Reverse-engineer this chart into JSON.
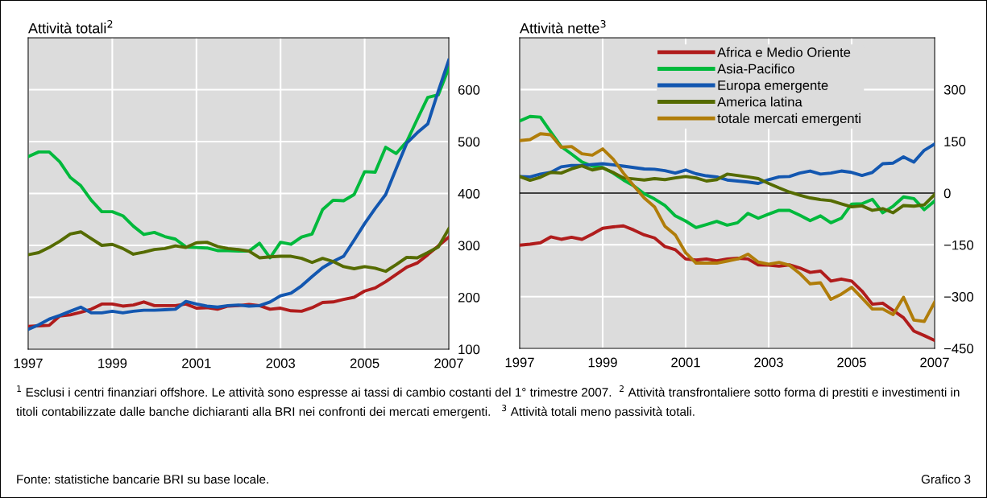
{
  "chart_data": [
    {
      "type": "line",
      "title": "Attività totali$^{2}$",
      "x": [
        1997,
        1997.25,
        1997.5,
        1997.75,
        1998,
        1998.25,
        1998.5,
        1998.75,
        1999,
        1999.25,
        1999.5,
        1999.75,
        2000,
        2000.25,
        2000.5,
        2000.75,
        2001,
        2001.25,
        2001.5,
        2001.75,
        2002,
        2002.25,
        2002.5,
        2002.75,
        2003,
        2003.25,
        2003.5,
        2003.75,
        2004,
        2004.25,
        2004.5,
        2004.75,
        2005,
        2005.25,
        2005.5,
        2005.75,
        2006,
        2006.25,
        2006.5,
        2006.75,
        2007
      ],
      "xlim": [
        1997,
        2007
      ],
      "xticks": [
        1997,
        1999,
        2001,
        2003,
        2005,
        2007
      ],
      "ylim": [
        100,
        700
      ],
      "yticks": [
        100,
        200,
        300,
        400,
        500,
        600
      ],
      "grid": true,
      "line_style": "solid",
      "marker": "none",
      "series": [
        {
          "color": "#b01c1c",
          "values": [
            144,
            145,
            146,
            164,
            166,
            171,
            177,
            187,
            187,
            183,
            185,
            191,
            184,
            184,
            184,
            187,
            179,
            180,
            177,
            183,
            184,
            186,
            184,
            177,
            179,
            174,
            173,
            180,
            190,
            191,
            196,
            200,
            212,
            218,
            230,
            244,
            258,
            266,
            282,
            299,
            316
          ]
        },
        {
          "color": "#00b93c",
          "values": [
            471,
            480,
            480,
            461,
            431,
            415,
            387,
            365,
            365,
            357,
            337,
            321,
            325,
            317,
            312,
            297,
            296,
            295,
            290,
            290,
            289,
            289,
            304,
            276,
            306,
            302,
            316,
            322,
            369,
            387,
            386,
            398,
            442,
            441,
            489,
            477,
            500,
            543,
            585,
            590,
            642
          ]
        },
        {
          "color": "#1357b0",
          "values": [
            138,
            147,
            158,
            165,
            173,
            181,
            170,
            170,
            173,
            170,
            173,
            175,
            175,
            176,
            177,
            192,
            187,
            183,
            181,
            184,
            185,
            183,
            184,
            191,
            203,
            208,
            222,
            240,
            257,
            269,
            279,
            310,
            342,
            371,
            398,
            448,
            497,
            517,
            534,
            597,
            657
          ]
        },
        {
          "color": "#556b00",
          "values": [
            282,
            286,
            296,
            308,
            322,
            326,
            313,
            300,
            302,
            294,
            283,
            287,
            292,
            294,
            299,
            296,
            305,
            306,
            298,
            294,
            292,
            289,
            276,
            278,
            279,
            279,
            275,
            267,
            275,
            269,
            259,
            255,
            259,
            256,
            250,
            263,
            277,
            276,
            286,
            297,
            332
          ]
        }
      ],
      "annotations": [
        "$^{1}$ Esclusi i centri finanziari offshore. Le attività sono espresse ai tassi di cambio costanti del 1° trimestre 2007.  $^{2}$ Attività transfrontaliere sotto forma di prestiti e investimenti in titoli contabilizzate dalle banche dichiaranti alla BRI nei confronti dei mercati emergenti.   $^{3}$ Attività totali meno passività totali.",
        "Fonte: statistiche bancarie BRI su base locale.",
        "Grafico 3"
      ]
    },
    {
      "type": "line",
      "title": "Attività nette$^{3}$",
      "x": [
        1997,
        1997.25,
        1997.5,
        1997.75,
        1998,
        1998.25,
        1998.5,
        1998.75,
        1999,
        1999.25,
        1999.5,
        1999.75,
        2000,
        2000.25,
        2000.5,
        2000.75,
        2001,
        2001.25,
        2001.5,
        2001.75,
        2002,
        2002.25,
        2002.5,
        2002.75,
        2003,
        2003.25,
        2003.5,
        2003.75,
        2004,
        2004.25,
        2004.5,
        2004.75,
        2005,
        2005.25,
        2005.5,
        2005.75,
        2006,
        2006.25,
        2006.5,
        2006.75,
        2007
      ],
      "xlim": [
        1997,
        2007
      ],
      "xticks": [
        1997,
        1999,
        2001,
        2003,
        2005,
        2007
      ],
      "ylim": [
        -450,
        450
      ],
      "yticks": [
        {
          "value": -450,
          "label": "−450"
        },
        {
          "value": -300,
          "label": "−300"
        },
        {
          "value": -150,
          "label": "−150"
        },
        0,
        150,
        300
      ],
      "grid": true,
      "legend": "top",
      "line_style": "solid",
      "marker": "none",
      "ref_lines": [
        {
          "axis": "y",
          "value": 0,
          "color": "#000000"
        }
      ],
      "series": [
        {
          "name": "Africa e Medio Oriente",
          "color": "#b01c1c",
          "values": [
            -151,
            -148,
            -144,
            -127,
            -134,
            -128,
            -134,
            -119,
            -102,
            -98,
            -95,
            -107,
            -121,
            -130,
            -155,
            -164,
            -191,
            -194,
            -191,
            -196,
            -191,
            -189,
            -191,
            -208,
            -209,
            -212,
            -208,
            -217,
            -230,
            -226,
            -255,
            -249,
            -255,
            -284,
            -322,
            -319,
            -340,
            -361,
            -400,
            -413,
            -427
          ]
        },
        {
          "name": "Asia-Pacifico",
          "color": "#00b93c",
          "values": [
            209,
            222,
            220,
            177,
            135,
            113,
            90,
            78,
            74,
            58,
            38,
            21,
            -2,
            -17,
            -36,
            -66,
            -81,
            -100,
            -91,
            -82,
            -93,
            -86,
            -59,
            -73,
            -61,
            -50,
            -50,
            -64,
            -80,
            -66,
            -86,
            -73,
            -32,
            -31,
            -18,
            -57,
            -38,
            -11,
            -16,
            -48,
            -23
          ]
        },
        {
          "name": "Europa emergente",
          "color": "#1357b0",
          "values": [
            48,
            47,
            55,
            60,
            76,
            80,
            80,
            83,
            85,
            82,
            78,
            74,
            70,
            69,
            65,
            58,
            67,
            56,
            50,
            47,
            38,
            35,
            32,
            28,
            39,
            47,
            48,
            58,
            64,
            55,
            58,
            64,
            60,
            51,
            60,
            85,
            87,
            105,
            90,
            124,
            142
          ]
        },
        {
          "name": "America latina",
          "color": "#556b00",
          "values": [
            48,
            37,
            46,
            60,
            58,
            70,
            79,
            67,
            73,
            60,
            44,
            41,
            38,
            42,
            39,
            44,
            48,
            44,
            35,
            39,
            55,
            51,
            47,
            42,
            28,
            15,
            3,
            -6,
            -14,
            -19,
            -22,
            -31,
            -40,
            -37,
            -50,
            -45,
            -57,
            -36,
            -38,
            -34,
            -4
          ]
        },
        {
          "name": "totale mercati emergenti",
          "color": "#b07d0a",
          "values": [
            152,
            155,
            172,
            169,
            133,
            135,
            114,
            110,
            128,
            99,
            58,
            21,
            -14,
            -40,
            -96,
            -121,
            -173,
            -203,
            -203,
            -203,
            -197,
            -191,
            -177,
            -200,
            -206,
            -201,
            -209,
            -233,
            -263,
            -260,
            -308,
            -293,
            -273,
            -304,
            -336,
            -336,
            -352,
            -302,
            -368,
            -372,
            -316
          ]
        }
      ]
    }
  ]
}
